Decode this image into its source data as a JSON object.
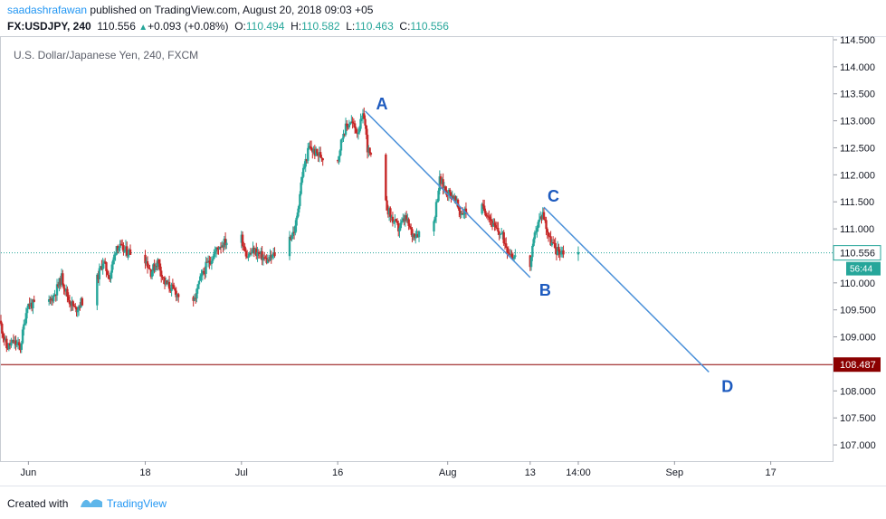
{
  "header": {
    "author": "saadashrafawan",
    "published_text": " published on TradingView.com, August 20, 2018 09:03 +05",
    "symbol": "FX:USDJPY, 240",
    "price": "110.556",
    "change_arrow": "▲",
    "change": "+0.093 (+0.08%)",
    "open_label": "O:",
    "open": "110.494",
    "high_label": "H:",
    "high": "110.582",
    "low_label": "L:",
    "low": "110.463",
    "close_label": "C:",
    "close": "110.556"
  },
  "chart_title": "U.S. Dollar/Japanese Yen, 240, FXCM",
  "footer": {
    "created_with": "Created with",
    "brand": "TradingView"
  },
  "colors": {
    "up": "#26a69a",
    "down": "#c62828",
    "line": "#4a90d9",
    "support": "#8b0000",
    "label": "#1e5bbf"
  },
  "chart_data": {
    "type": "candlestick",
    "y_ticks": [
      "107.000",
      "107.500",
      "108.000",
      "108.500",
      "109.000",
      "109.500",
      "110.000",
      "110.500",
      "111.000",
      "111.500",
      "112.000",
      "112.500",
      "113.000",
      "113.500",
      "114.000",
      "114.500"
    ],
    "ylim": [
      106.7,
      114.55
    ],
    "x_ticks": [
      {
        "label": "Jun",
        "date": "2018-06-01"
      },
      {
        "label": "18",
        "date": "2018-06-18"
      },
      {
        "label": "Jul",
        "date": "2018-07-02"
      },
      {
        "label": "16",
        "date": "2018-07-16"
      },
      {
        "label": "Aug",
        "date": "2018-08-01"
      },
      {
        "label": "13",
        "date": "2018-08-13"
      },
      {
        "label": "14:00",
        "date": "2018-08-20"
      },
      {
        "label": "Sep",
        "date": "2018-09-03"
      },
      {
        "label": "17",
        "date": "2018-09-17"
      }
    ],
    "xlim": [
      "2018-05-28",
      "2018-09-26"
    ],
    "current_price": "110.556",
    "countdown": "56:44",
    "support_level": "108.487",
    "wave_points": [
      {
        "label": "A",
        "date": "2018-07-20",
        "price": 113.18
      },
      {
        "label": "B",
        "date": "2018-08-13",
        "price": 110.1
      },
      {
        "label": "C",
        "date": "2018-08-15",
        "price": 111.4
      },
      {
        "label": "D",
        "date": "2018-09-08",
        "price": 108.35
      }
    ],
    "price_path": [
      [
        "2018-05-28",
        109.3
      ],
      [
        "2018-05-29",
        108.8
      ],
      [
        "2018-05-30",
        108.9
      ],
      [
        "2018-05-31",
        108.8
      ],
      [
        "2018-06-01",
        109.6
      ],
      [
        "2018-06-04",
        109.6
      ],
      [
        "2018-06-05",
        109.8
      ],
      [
        "2018-06-06",
        110.1
      ],
      [
        "2018-06-07",
        109.7
      ],
      [
        "2018-06-08",
        109.5
      ],
      [
        "2018-06-11",
        110.0
      ],
      [
        "2018-06-12",
        110.4
      ],
      [
        "2018-06-13",
        110.1
      ],
      [
        "2018-06-14",
        110.7
      ],
      [
        "2018-06-15",
        110.6
      ],
      [
        "2018-06-18",
        110.5
      ],
      [
        "2018-06-19",
        110.2
      ],
      [
        "2018-06-20",
        110.4
      ],
      [
        "2018-06-21",
        110.0
      ],
      [
        "2018-06-22",
        109.9
      ],
      [
        "2018-06-25",
        109.5
      ],
      [
        "2018-06-26",
        110.0
      ],
      [
        "2018-06-27",
        110.3
      ],
      [
        "2018-06-28",
        110.5
      ],
      [
        "2018-06-29",
        110.7
      ],
      [
        "2018-07-02",
        110.9
      ],
      [
        "2018-07-03",
        110.5
      ],
      [
        "2018-07-04",
        110.6
      ],
      [
        "2018-07-05",
        110.5
      ],
      [
        "2018-07-06",
        110.4
      ],
      [
        "2018-07-09",
        110.8
      ],
      [
        "2018-07-10",
        111.0
      ],
      [
        "2018-07-11",
        112.0
      ],
      [
        "2018-07-12",
        112.5
      ],
      [
        "2018-07-13",
        112.4
      ],
      [
        "2018-07-16",
        112.2
      ],
      [
        "2018-07-17",
        112.8
      ],
      [
        "2018-07-18",
        113.0
      ],
      [
        "2018-07-19",
        112.8
      ],
      [
        "2018-07-20",
        113.1
      ],
      [
        "2018-07-20",
        112.5
      ],
      [
        "2018-07-23",
        111.5
      ],
      [
        "2018-07-24",
        111.2
      ],
      [
        "2018-07-25",
        111.0
      ],
      [
        "2018-07-26",
        111.2
      ],
      [
        "2018-07-27",
        110.9
      ],
      [
        "2018-07-30",
        111.0
      ],
      [
        "2018-07-31",
        111.9
      ],
      [
        "2018-08-01",
        111.7
      ],
      [
        "2018-08-02",
        111.6
      ],
      [
        "2018-08-03",
        111.3
      ],
      [
        "2018-08-06",
        111.4
      ],
      [
        "2018-08-07",
        111.3
      ],
      [
        "2018-08-08",
        111.0
      ],
      [
        "2018-08-09",
        110.9
      ],
      [
        "2018-08-10",
        110.6
      ],
      [
        "2018-08-13",
        110.2
      ],
      [
        "2018-08-14",
        111.0
      ],
      [
        "2018-08-15",
        111.3
      ],
      [
        "2018-08-16",
        110.8
      ],
      [
        "2018-08-17",
        110.6
      ],
      [
        "2018-08-20",
        110.556
      ]
    ]
  }
}
